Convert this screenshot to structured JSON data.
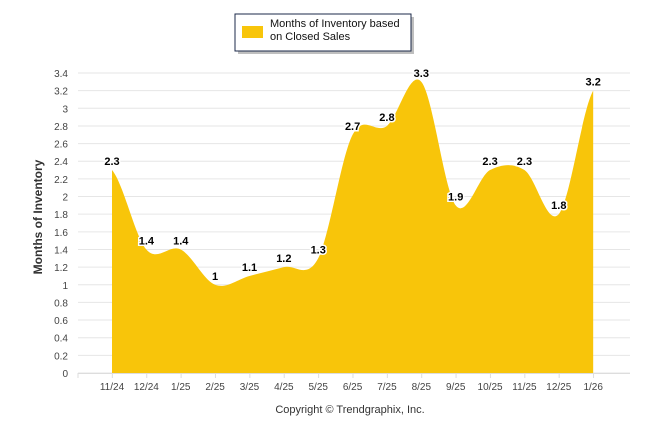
{
  "chart_data": {
    "type": "area",
    "title": "",
    "xlabel": "",
    "ylabel": "Months of Inventory",
    "ylim": [
      0,
      3.4
    ],
    "yticks": [
      0,
      0.2,
      0.4,
      0.6,
      0.8,
      1,
      1.2,
      1.4,
      1.6,
      1.8,
      2,
      2.2,
      2.4,
      2.6,
      2.8,
      3,
      3.2,
      3.4
    ],
    "categories": [
      "11/24",
      "12/24",
      "1/25",
      "2/25",
      "3/25",
      "4/25",
      "5/25",
      "6/25",
      "7/25",
      "8/25",
      "9/25",
      "10/25",
      "11/25",
      "12/25",
      "1/26"
    ],
    "series": [
      {
        "name": "Months of Inventory based on Closed Sales",
        "values": [
          2.3,
          1.4,
          1.4,
          1,
          1.1,
          1.2,
          1.3,
          2.7,
          2.8,
          3.3,
          1.9,
          2.3,
          2.3,
          1.8,
          3.2
        ],
        "color": "#F8C50A"
      }
    ],
    "legend": {
      "position": "top-center",
      "lines": [
        "Months of Inventory based",
        "on Closed Sales"
      ]
    },
    "grid": true
  },
  "footer": {
    "copyright": "Copyright © Trendgraphix, Inc."
  }
}
